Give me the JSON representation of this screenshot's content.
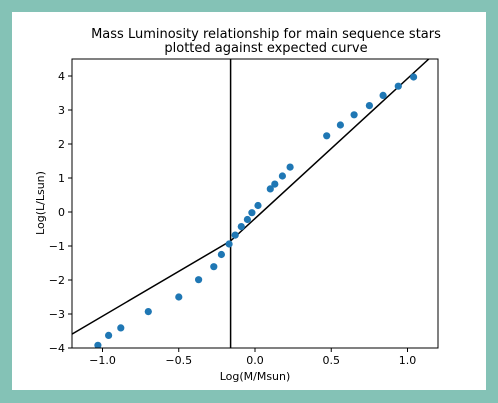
{
  "chart_data": {
    "type": "scatter",
    "title_line1": "Mass Luminosity relationship for main sequence stars",
    "title_line2": "plotted against expected curve",
    "xlabel": "Log(M/Msun)",
    "ylabel": "Log(L/Lsun)",
    "xlim": [
      -1.2,
      1.2
    ],
    "ylim": [
      -4.0,
      4.5
    ],
    "xticks": [
      -1.0,
      -0.5,
      0.0,
      0.5,
      1.0
    ],
    "xtick_labels": [
      "−1.0",
      "−0.5",
      "0.0",
      "0.5",
      "1.0"
    ],
    "yticks": [
      -4,
      -3,
      -2,
      -1,
      0,
      1,
      2,
      3,
      4
    ],
    "ytick_labels": [
      "−4",
      "−3",
      "−2",
      "−1",
      "0",
      "1",
      "2",
      "3",
      "4"
    ],
    "point_color": "#1f77b4",
    "line_color": "#000000",
    "points": [
      {
        "x": -1.03,
        "y": -3.92
      },
      {
        "x": -0.96,
        "y": -3.63
      },
      {
        "x": -0.88,
        "y": -3.41
      },
      {
        "x": -0.7,
        "y": -2.93
      },
      {
        "x": -0.5,
        "y": -2.5
      },
      {
        "x": -0.37,
        "y": -1.99
      },
      {
        "x": -0.27,
        "y": -1.61
      },
      {
        "x": -0.22,
        "y": -1.25
      },
      {
        "x": -0.17,
        "y": -0.94
      },
      {
        "x": -0.13,
        "y": -0.68
      },
      {
        "x": -0.09,
        "y": -0.43
      },
      {
        "x": -0.05,
        "y": -0.22
      },
      {
        "x": -0.02,
        "y": -0.02
      },
      {
        "x": 0.02,
        "y": 0.19
      },
      {
        "x": 0.1,
        "y": 0.68
      },
      {
        "x": 0.13,
        "y": 0.82
      },
      {
        "x": 0.18,
        "y": 1.06
      },
      {
        "x": 0.23,
        "y": 1.32
      },
      {
        "x": 0.47,
        "y": 2.24
      },
      {
        "x": 0.56,
        "y": 2.56
      },
      {
        "x": 0.65,
        "y": 2.86
      },
      {
        "x": 0.75,
        "y": 3.13
      },
      {
        "x": 0.84,
        "y": 3.43
      },
      {
        "x": 0.94,
        "y": 3.7
      },
      {
        "x": 1.04,
        "y": 3.97
      }
    ],
    "expected_curve": [
      {
        "x": -1.2,
        "y": -3.59
      },
      {
        "x": -0.16,
        "y": -0.85
      },
      {
        "x": 1.14,
        "y": 4.5
      }
    ],
    "vertical_line_x": -0.16
  }
}
